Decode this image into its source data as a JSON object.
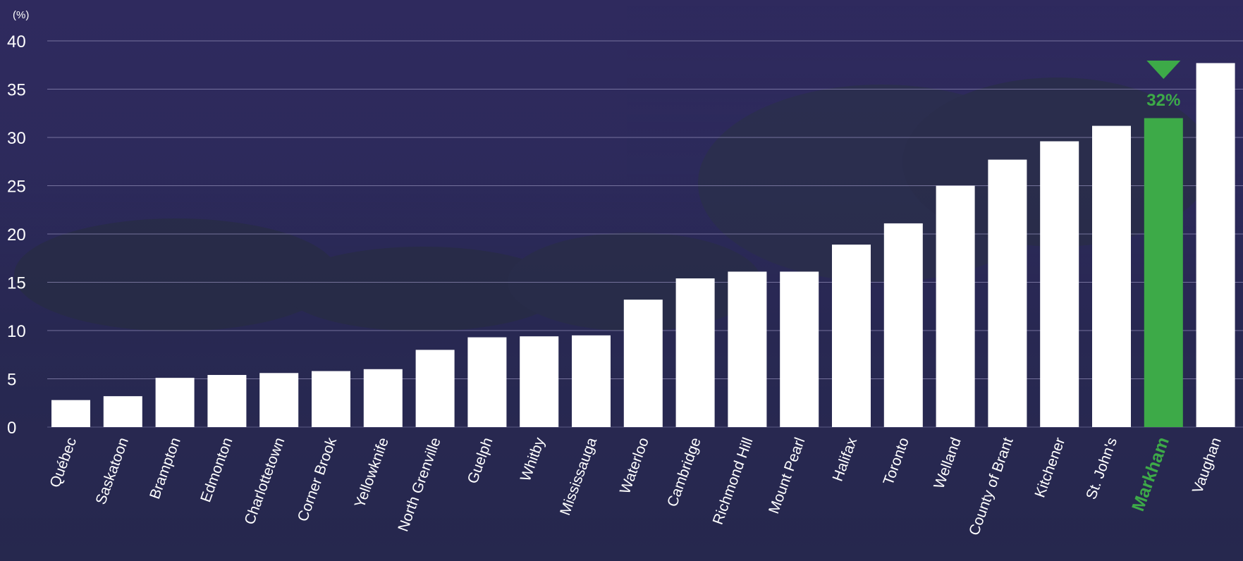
{
  "chart_data": {
    "type": "bar",
    "ylabel": "(%)",
    "ylim": [
      0,
      40
    ],
    "yticks": [
      0,
      5,
      10,
      15,
      20,
      25,
      30,
      35,
      40
    ],
    "grid": true,
    "categories": [
      "Québec",
      "Saskatoon",
      "Brampton",
      "Edmonton",
      "Charlottetown",
      "Corner Brook",
      "Yellowknife",
      "North Grenville",
      "Guelph",
      "Whitby",
      "Mississauga",
      "Waterloo",
      "Cambridge",
      "Richmond Hill",
      "Mount Pearl",
      "Halifax",
      "Toronto",
      "Welland",
      "County of Brant",
      "Kitchener",
      "St. John's",
      "Markham",
      "Vaughan"
    ],
    "values": [
      2.8,
      3.2,
      5.1,
      5.4,
      5.6,
      5.8,
      6.0,
      8.0,
      9.3,
      9.4,
      9.5,
      13.2,
      15.4,
      16.1,
      16.1,
      18.9,
      21.1,
      25.0,
      27.7,
      29.6,
      31.2,
      32.0,
      37.7
    ],
    "highlight": {
      "category": "Markham",
      "label": "32%",
      "color": "#3daa48",
      "marker": "down-triangle"
    },
    "bar_color": "#ffffff",
    "background_color": "#2e2a5c"
  }
}
